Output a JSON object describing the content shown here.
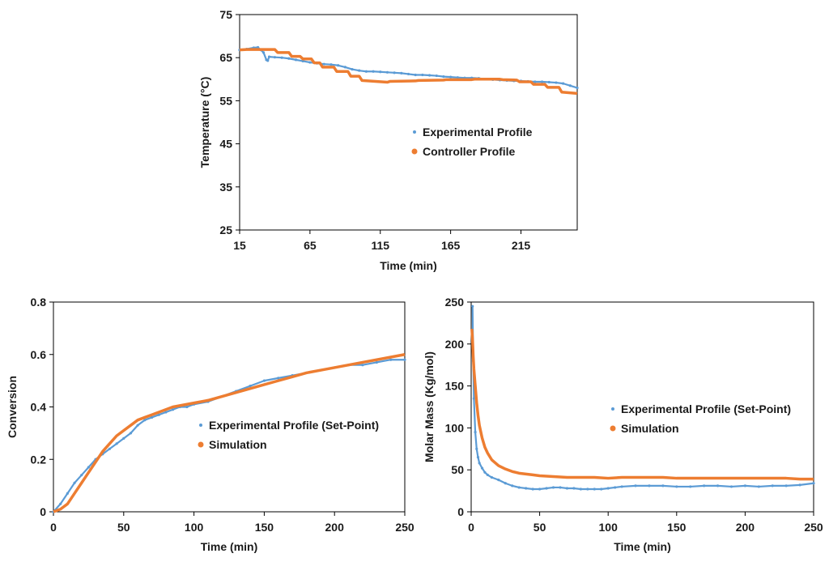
{
  "colors": {
    "experimental": "#5b9bd5",
    "simulation": "#ed7d31"
  },
  "chart_data": [
    {
      "id": "temperature",
      "type": "line",
      "xlabel": "Time (min)",
      "ylabel": "Temperature (°C)",
      "xlim": [
        15,
        255
      ],
      "ylim": [
        25,
        75
      ],
      "xticks": [
        15,
        65,
        115,
        165,
        215
      ],
      "yticks": [
        25,
        35,
        45,
        55,
        65,
        75
      ],
      "legend_position": "center-right",
      "series": [
        {
          "name": "Experimental Profile",
          "style": "markers",
          "x": [
            15,
            20,
            25,
            28,
            30,
            32,
            34,
            35,
            36,
            40,
            45,
            50,
            55,
            60,
            65,
            70,
            75,
            80,
            85,
            90,
            95,
            100,
            105,
            110,
            115,
            120,
            125,
            130,
            135,
            140,
            145,
            150,
            155,
            160,
            165,
            170,
            175,
            180,
            185,
            190,
            195,
            200,
            205,
            210,
            215,
            220,
            225,
            230,
            235,
            240,
            245,
            250,
            255
          ],
          "y": [
            66.8,
            67.0,
            67.3,
            67.4,
            66.8,
            66.2,
            64.5,
            64.3,
            65.2,
            65.1,
            65.0,
            64.8,
            64.5,
            64.2,
            63.9,
            63.7,
            63.5,
            63.4,
            63.2,
            62.8,
            62.3,
            62.0,
            61.8,
            61.8,
            61.7,
            61.6,
            61.5,
            61.4,
            61.2,
            61.0,
            61.0,
            60.9,
            60.8,
            60.6,
            60.5,
            60.4,
            60.3,
            60.3,
            60.2,
            60.0,
            59.9,
            59.8,
            59.7,
            59.6,
            59.6,
            59.5,
            59.4,
            59.4,
            59.3,
            59.2,
            59.0,
            58.5,
            58.0
          ]
        },
        {
          "name": "Controller Profile",
          "style": "line",
          "x": [
            15,
            20,
            30,
            40,
            42,
            50,
            52,
            58,
            60,
            66,
            68,
            72,
            74,
            82,
            84,
            92,
            94,
            100,
            102,
            120,
            122,
            140,
            142,
            160,
            162,
            180,
            182,
            200,
            202,
            212,
            214,
            222,
            224,
            232,
            234,
            242,
            244,
            255
          ],
          "y": [
            66.8,
            66.9,
            66.9,
            66.9,
            66.2,
            66.2,
            65.3,
            65.3,
            64.7,
            64.7,
            63.8,
            63.8,
            62.8,
            62.8,
            61.8,
            61.8,
            60.7,
            60.7,
            59.7,
            59.3,
            59.5,
            59.6,
            59.7,
            59.8,
            59.9,
            59.9,
            60.0,
            60.0,
            59.9,
            59.8,
            59.4,
            59.4,
            58.8,
            58.8,
            58.1,
            58.1,
            57.0,
            56.7
          ]
        }
      ]
    },
    {
      "id": "conversion",
      "type": "line",
      "xlabel": "Time (min)",
      "ylabel": "Conversion",
      "xlim": [
        0,
        250
      ],
      "ylim": [
        0,
        0.8
      ],
      "xticks": [
        0,
        50,
        100,
        150,
        200,
        250
      ],
      "yticks": [
        0,
        0.2,
        0.4,
        0.6,
        0.8
      ],
      "legend_position": "center-right",
      "series": [
        {
          "name": "Experimental Profile (Set-Point)",
          "style": "markers",
          "x": [
            0,
            5,
            10,
            15,
            20,
            25,
            30,
            35,
            40,
            45,
            50,
            55,
            60,
            65,
            70,
            75,
            80,
            85,
            90,
            95,
            100,
            110,
            120,
            130,
            140,
            150,
            160,
            170,
            180,
            190,
            200,
            210,
            220,
            230,
            240,
            250
          ],
          "y": [
            0.0,
            0.03,
            0.07,
            0.11,
            0.14,
            0.17,
            0.2,
            0.22,
            0.24,
            0.26,
            0.28,
            0.3,
            0.33,
            0.35,
            0.36,
            0.37,
            0.38,
            0.39,
            0.4,
            0.4,
            0.41,
            0.42,
            0.44,
            0.46,
            0.48,
            0.5,
            0.51,
            0.52,
            0.53,
            0.54,
            0.55,
            0.56,
            0.56,
            0.57,
            0.58,
            0.58
          ]
        },
        {
          "name": "Simulation",
          "style": "line",
          "x": [
            0,
            5,
            10,
            15,
            20,
            25,
            30,
            35,
            40,
            45,
            50,
            55,
            60,
            65,
            70,
            75,
            80,
            85,
            90,
            95,
            100,
            110,
            120,
            130,
            140,
            150,
            160,
            170,
            180,
            190,
            200,
            210,
            220,
            230,
            240,
            250
          ],
          "y": [
            0.0,
            0.01,
            0.03,
            0.07,
            0.11,
            0.15,
            0.19,
            0.23,
            0.26,
            0.29,
            0.31,
            0.33,
            0.35,
            0.36,
            0.37,
            0.38,
            0.39,
            0.4,
            0.405,
            0.41,
            0.415,
            0.425,
            0.44,
            0.455,
            0.47,
            0.485,
            0.5,
            0.515,
            0.53,
            0.54,
            0.55,
            0.56,
            0.57,
            0.58,
            0.59,
            0.6
          ]
        }
      ]
    },
    {
      "id": "molar-mass",
      "type": "line",
      "xlabel": "Time (min)",
      "ylabel": "Molar Mass (Kg/mol)",
      "xlim": [
        0,
        250
      ],
      "ylim": [
        0,
        250
      ],
      "xticks": [
        0,
        50,
        100,
        150,
        200,
        250
      ],
      "yticks": [
        0,
        50,
        100,
        150,
        200,
        250
      ],
      "legend_position": "center-right",
      "series": [
        {
          "name": "Experimental Profile (Set-Point)",
          "style": "markers",
          "x": [
            1,
            1.5,
            2,
            3,
            4,
            5,
            6,
            8,
            10,
            12,
            15,
            20,
            25,
            30,
            35,
            40,
            45,
            50,
            55,
            60,
            65,
            70,
            75,
            80,
            85,
            90,
            95,
            100,
            105,
            110,
            120,
            130,
            140,
            150,
            160,
            170,
            180,
            190,
            200,
            210,
            220,
            230,
            240,
            250
          ],
          "y": [
            245,
            180,
            135,
            95,
            75,
            65,
            58,
            52,
            47,
            44,
            41,
            38,
            34,
            31,
            29,
            28,
            27,
            27,
            28,
            29,
            29,
            28,
            28,
            27,
            27,
            27,
            27,
            28,
            29,
            30,
            31,
            31,
            31,
            30,
            30,
            31,
            31,
            30,
            31,
            30,
            31,
            31,
            32,
            34
          ]
        },
        {
          "name": "Simulation",
          "style": "line",
          "x": [
            0.5,
            1,
            1.5,
            2,
            3,
            4,
            5,
            6,
            8,
            10,
            12,
            15,
            20,
            25,
            30,
            35,
            40,
            45,
            50,
            60,
            70,
            80,
            90,
            100,
            110,
            120,
            130,
            140,
            150,
            160,
            170,
            180,
            190,
            200,
            210,
            220,
            230,
            240,
            250
          ],
          "y": [
            218,
            205,
            185,
            170,
            150,
            130,
            115,
            103,
            88,
            77,
            70,
            62,
            55,
            51,
            48,
            46,
            45,
            44,
            43,
            42,
            41,
            41,
            41,
            40,
            41,
            41,
            41,
            41,
            40,
            40,
            40,
            40,
            40,
            40,
            40,
            40,
            40,
            39,
            39
          ]
        }
      ]
    }
  ]
}
